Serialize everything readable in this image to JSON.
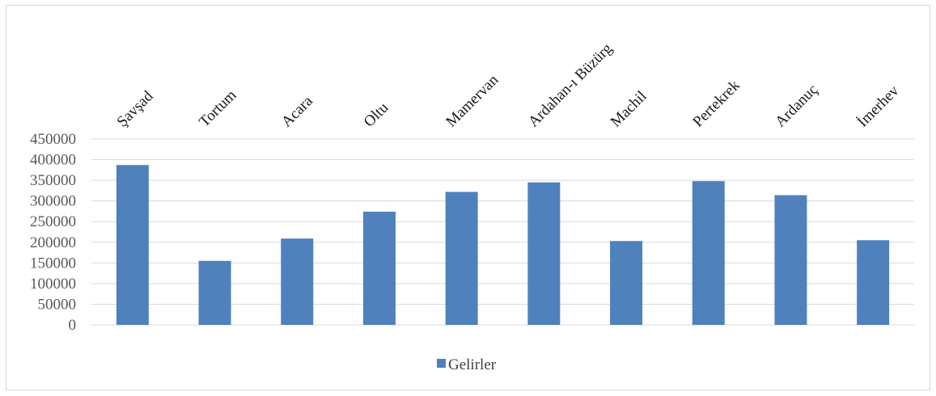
{
  "chart_data": {
    "type": "bar",
    "categories": [
      "Şavşad",
      "Tortum",
      "Acara",
      "Oltu",
      "Mamervan",
      "Ardahan-ı Büzürg",
      "Machil",
      "Pertekrek",
      "Ardanuç",
      "İmerhev"
    ],
    "series": [
      {
        "name": "Gelirler",
        "values": [
          387000,
          155000,
          209000,
          274000,
          322000,
          345000,
          203000,
          348000,
          314000,
          205000
        ]
      }
    ],
    "yticks": [
      0,
      50000,
      100000,
      150000,
      200000,
      250000,
      300000,
      350000,
      400000,
      450000
    ],
    "ylim": [
      0,
      450000
    ],
    "grid": true,
    "legend_position": "bottom",
    "bar_color": "#4f81bd",
    "grid_color": "#d9d9d9"
  }
}
